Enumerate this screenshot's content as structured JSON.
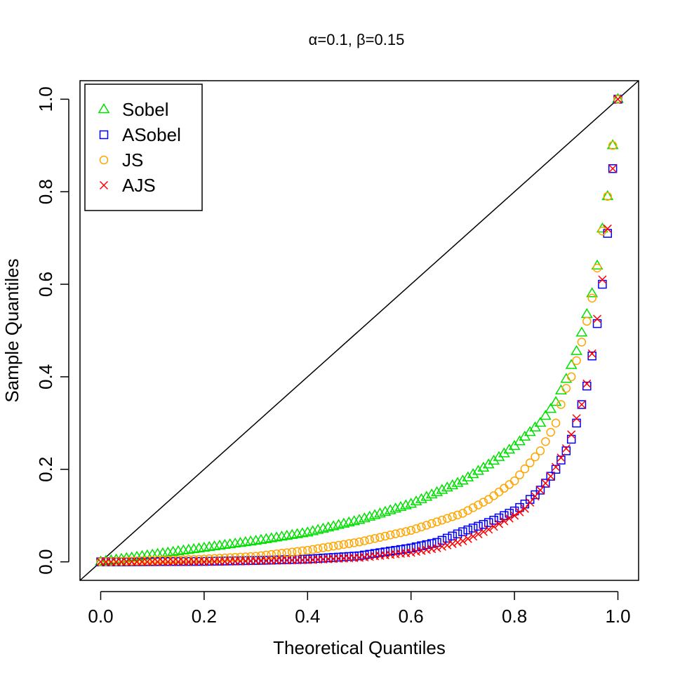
{
  "chart_data": {
    "type": "scatter",
    "title": "α=0.1, β=0.15",
    "xlabel": "Theoretical Quantiles",
    "ylabel": "Sample Quantiles",
    "xlim": [
      -0.04,
      1.04
    ],
    "ylim": [
      -0.04,
      1.04
    ],
    "xticks": [
      0.0,
      0.2,
      0.4,
      0.6,
      0.8,
      1.0
    ],
    "yticks": [
      0.0,
      0.2,
      0.4,
      0.6,
      0.8,
      1.0
    ],
    "xtick_labels": [
      "0.0",
      "0.2",
      "0.4",
      "0.6",
      "0.8",
      "1.0"
    ],
    "ytick_labels": [
      "0.0",
      "0.2",
      "0.4",
      "0.6",
      "0.8",
      "1.0"
    ],
    "reference_line": {
      "type": "identity",
      "from": [
        -0.04,
        -0.04
      ],
      "to": [
        1.04,
        1.04
      ]
    },
    "legend": {
      "position": "top-left"
    },
    "points_per_series": 101,
    "series": [
      {
        "name": "Sobel",
        "marker": "triangle",
        "color": "#00e000",
        "knots": [
          [
            0,
            0
          ],
          [
            0.1,
            0.015
          ],
          [
            0.2,
            0.03
          ],
          [
            0.3,
            0.045
          ],
          [
            0.4,
            0.063
          ],
          [
            0.5,
            0.09
          ],
          [
            0.6,
            0.125
          ],
          [
            0.7,
            0.175
          ],
          [
            0.75,
            0.21
          ],
          [
            0.8,
            0.25
          ],
          [
            0.85,
            0.3
          ],
          [
            0.88,
            0.345
          ],
          [
            0.9,
            0.395
          ],
          [
            0.92,
            0.455
          ],
          [
            0.93,
            0.495
          ],
          [
            0.94,
            0.535
          ],
          [
            0.95,
            0.58
          ],
          [
            0.96,
            0.64
          ],
          [
            0.97,
            0.72
          ],
          [
            0.98,
            0.79
          ],
          [
            0.99,
            0.9
          ],
          [
            1,
            1
          ]
        ]
      },
      {
        "name": "ASobel",
        "marker": "square",
        "color": "#0000ff",
        "knots": [
          [
            0,
            0
          ],
          [
            0.2,
            0.001
          ],
          [
            0.3,
            0.003
          ],
          [
            0.4,
            0.006
          ],
          [
            0.5,
            0.013
          ],
          [
            0.6,
            0.03
          ],
          [
            0.65,
            0.042
          ],
          [
            0.7,
            0.065
          ],
          [
            0.75,
            0.085
          ],
          [
            0.8,
            0.11
          ],
          [
            0.82,
            0.125
          ],
          [
            0.85,
            0.155
          ],
          [
            0.87,
            0.185
          ],
          [
            0.88,
            0.2
          ],
          [
            0.89,
            0.22
          ],
          [
            0.9,
            0.24
          ],
          [
            0.91,
            0.265
          ],
          [
            0.92,
            0.3
          ],
          [
            0.93,
            0.34
          ],
          [
            0.94,
            0.38
          ],
          [
            0.95,
            0.445
          ],
          [
            0.96,
            0.515
          ],
          [
            0.97,
            0.6
          ],
          [
            0.98,
            0.71
          ],
          [
            0.99,
            0.85
          ],
          [
            1,
            1
          ]
        ]
      },
      {
        "name": "JS",
        "marker": "circle",
        "color": "#ffa500",
        "knots": [
          [
            0,
            0
          ],
          [
            0.2,
            0.006
          ],
          [
            0.3,
            0.012
          ],
          [
            0.4,
            0.025
          ],
          [
            0.5,
            0.043
          ],
          [
            0.6,
            0.068
          ],
          [
            0.7,
            0.105
          ],
          [
            0.75,
            0.135
          ],
          [
            0.8,
            0.175
          ],
          [
            0.85,
            0.24
          ],
          [
            0.88,
            0.3
          ],
          [
            0.89,
            0.34
          ],
          [
            0.9,
            0.375
          ],
          [
            0.91,
            0.4
          ],
          [
            0.92,
            0.435
          ],
          [
            0.93,
            0.475
          ],
          [
            0.94,
            0.52
          ],
          [
            0.95,
            0.57
          ],
          [
            0.96,
            0.635
          ],
          [
            0.97,
            0.715
          ],
          [
            0.98,
            0.79
          ],
          [
            0.99,
            0.9
          ],
          [
            1,
            1
          ]
        ]
      },
      {
        "name": "AJS",
        "marker": "cross",
        "color": "#ff0000",
        "knots": [
          [
            0,
            0
          ],
          [
            0.2,
            0.0
          ],
          [
            0.3,
            0.002
          ],
          [
            0.4,
            0.004
          ],
          [
            0.5,
            0.009
          ],
          [
            0.6,
            0.02
          ],
          [
            0.65,
            0.03
          ],
          [
            0.7,
            0.045
          ],
          [
            0.75,
            0.07
          ],
          [
            0.8,
            0.1
          ],
          [
            0.82,
            0.115
          ],
          [
            0.85,
            0.155
          ],
          [
            0.87,
            0.185
          ],
          [
            0.88,
            0.205
          ],
          [
            0.89,
            0.225
          ],
          [
            0.9,
            0.245
          ],
          [
            0.91,
            0.275
          ],
          [
            0.92,
            0.31
          ],
          [
            0.93,
            0.34
          ],
          [
            0.94,
            0.385
          ],
          [
            0.95,
            0.45
          ],
          [
            0.96,
            0.525
          ],
          [
            0.97,
            0.61
          ],
          [
            0.98,
            0.72
          ],
          [
            0.99,
            0.85
          ],
          [
            1,
            1
          ]
        ]
      }
    ]
  }
}
